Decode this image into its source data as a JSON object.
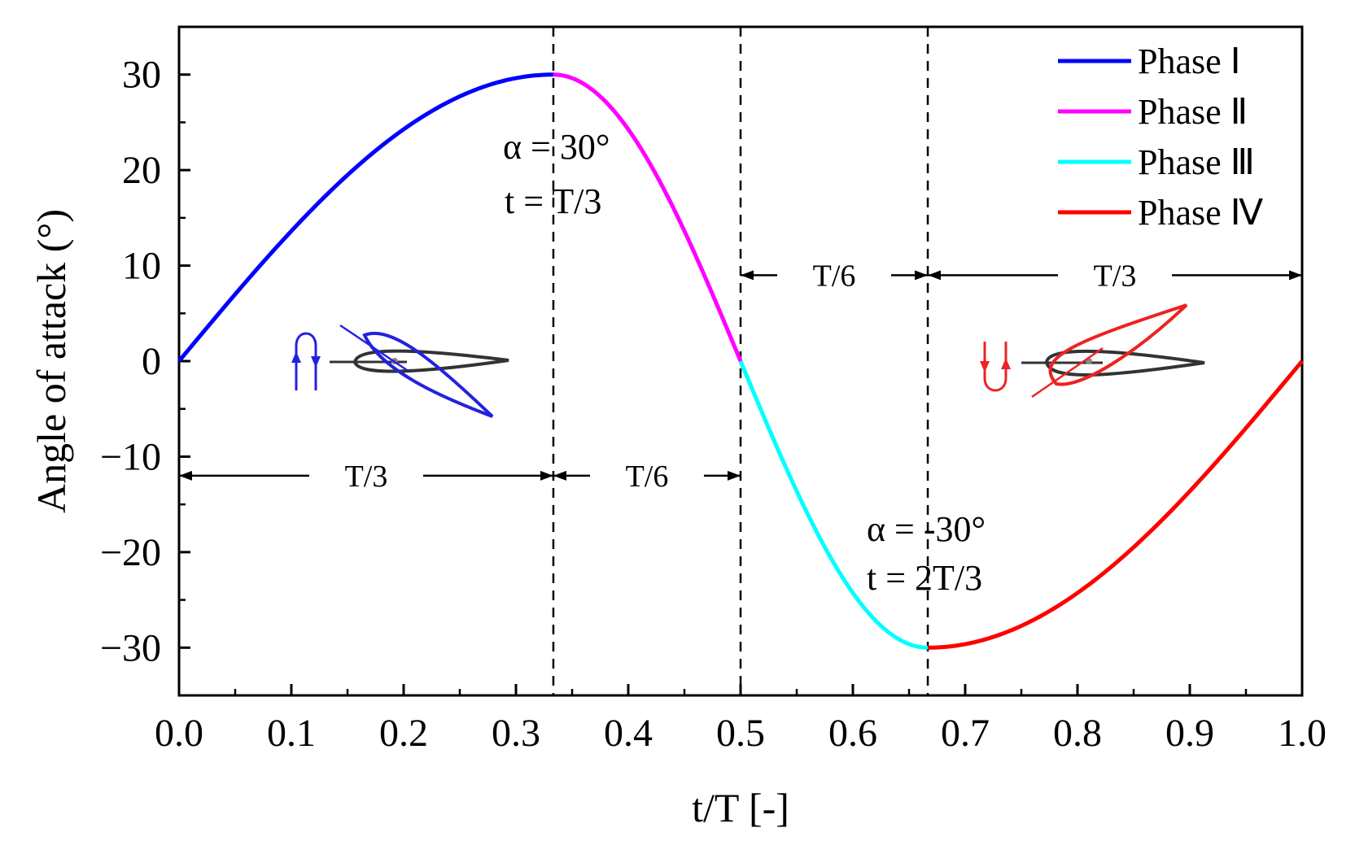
{
  "chart_data": {
    "type": "line",
    "xlabel": "t/T [-]",
    "ylabel": "Angle of attack (°)",
    "xlim": [
      0,
      1
    ],
    "ylim": [
      -35,
      35
    ],
    "x_ticks": [
      "0.0",
      "0.1",
      "0.2",
      "0.3",
      "0.4",
      "0.5",
      "0.6",
      "0.7",
      "0.8",
      "0.9",
      "1.0"
    ],
    "y_ticks": [
      "30",
      "20",
      "10",
      "0",
      "−10",
      "−20",
      "−30"
    ],
    "y_tick_values": [
      30,
      20,
      10,
      0,
      -10,
      -20,
      -30
    ],
    "series": [
      {
        "name": "Phase Ⅰ",
        "color": "#0000ff",
        "x_start": 0.0,
        "x_end": 0.3333,
        "shape": "rise",
        "from": 0,
        "to": 30
      },
      {
        "name": "Phase Ⅱ",
        "color": "#ff00ff",
        "x_start": 0.3333,
        "x_end": 0.5,
        "shape": "fall",
        "from": 30,
        "to": 0
      },
      {
        "name": "Phase Ⅲ",
        "color": "#00ffff",
        "x_start": 0.5,
        "x_end": 0.6667,
        "shape": "fall2",
        "from": 0,
        "to": -30
      },
      {
        "name": "Phase Ⅳ",
        "color": "#ff0000",
        "x_start": 0.6667,
        "x_end": 1.0,
        "shape": "rise2",
        "from": -30,
        "to": 0
      }
    ],
    "vlines": [
      0.3333,
      0.5,
      0.6667
    ],
    "annotations": {
      "max_alpha": "α = 30°",
      "max_t": "t = T/3",
      "min_alpha": "α = -30°",
      "min_t": "t = 2T/3"
    },
    "spans": [
      {
        "label": "T/3",
        "x0": 0.0,
        "x1": 0.3333,
        "y": -12
      },
      {
        "label": "T/6",
        "x0": 0.3333,
        "x1": 0.5,
        "y": -12
      },
      {
        "label": "T/6",
        "x0": 0.5,
        "x1": 0.6667,
        "y": 9
      },
      {
        "label": "T/3",
        "x0": 0.6667,
        "x1": 1.0,
        "y": 9
      }
    ],
    "legend_position": "top-right"
  }
}
